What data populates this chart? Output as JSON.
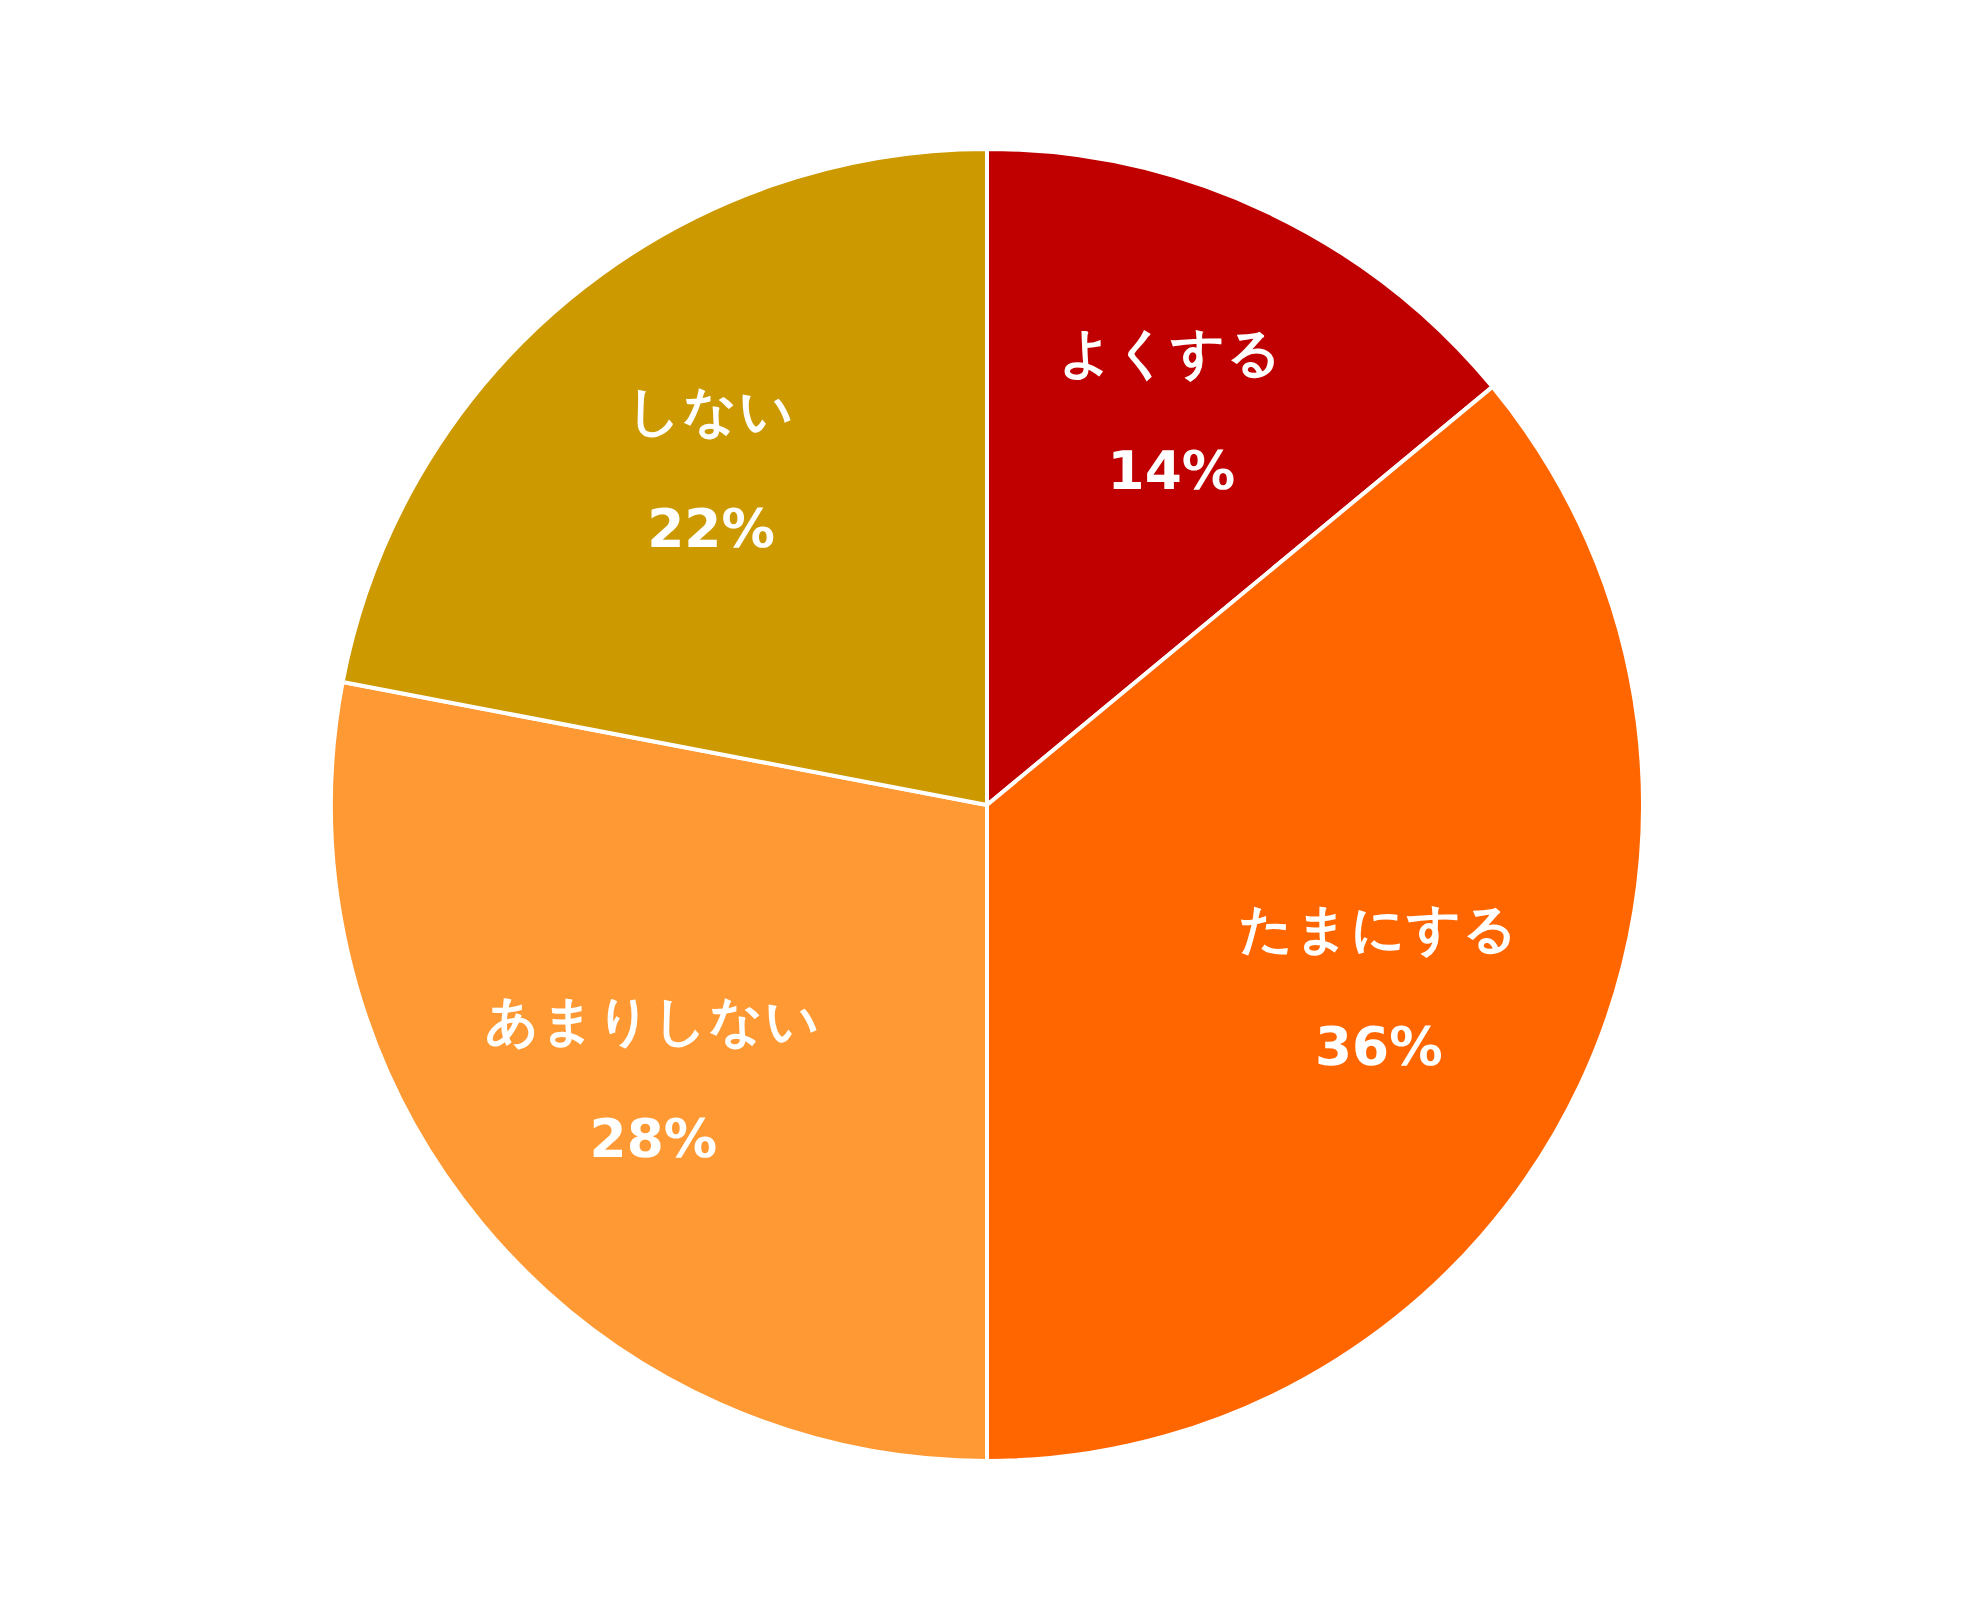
{
  "chart_data": {
    "type": "pie",
    "categories": [
      "よくする",
      "たまにする",
      "あまりしない",
      "しない"
    ],
    "values": [
      14,
      36,
      28,
      22
    ],
    "colors": [
      "#c00000",
      "#ff6600",
      "#ff9933",
      "#cc9900"
    ],
    "value_labels": [
      "14%",
      "36%",
      "28%",
      "22%"
    ]
  }
}
